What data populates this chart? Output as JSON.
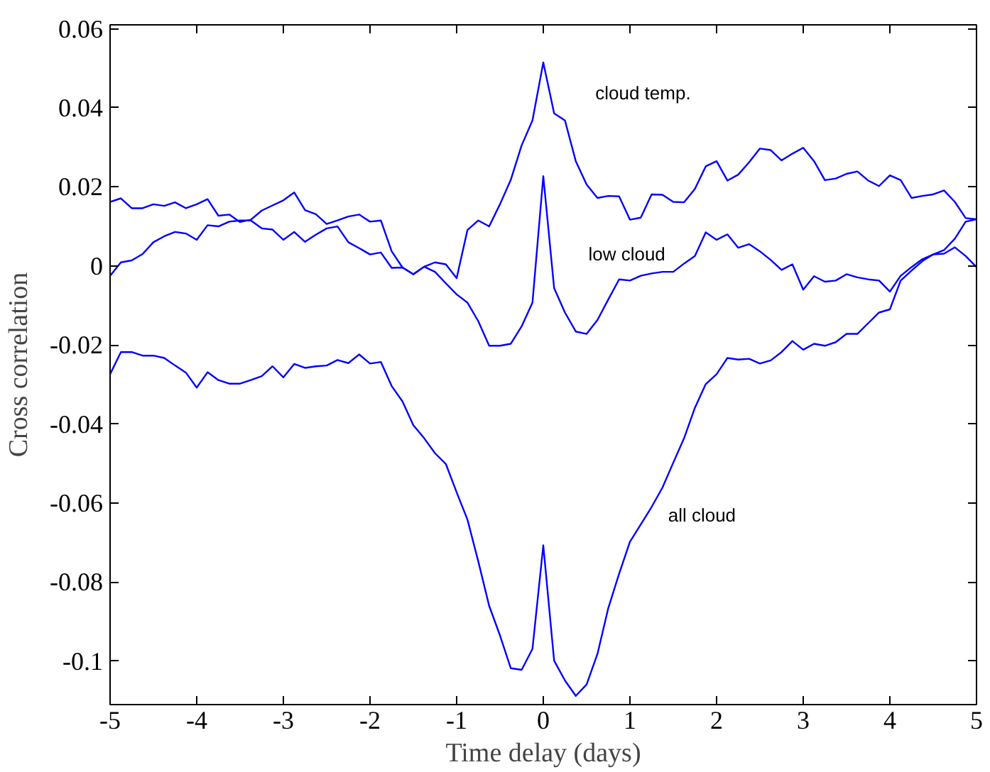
{
  "chart_data": {
    "type": "line",
    "xlabel": "Time delay (days)",
    "ylabel": "Cross correlation",
    "x": [
      -5,
      -4.875,
      -4.75,
      -4.625,
      -4.5,
      -4.375,
      -4.25,
      -4.125,
      -4,
      -3.875,
      -3.75,
      -3.625,
      -3.5,
      -3.375,
      -3.25,
      -3.125,
      -3,
      -2.875,
      -2.75,
      -2.625,
      -2.5,
      -2.375,
      -2.25,
      -2.125,
      -2,
      -1.875,
      -1.75,
      -1.625,
      -1.5,
      -1.375,
      -1.25,
      -1.125,
      -1,
      -0.875,
      -0.75,
      -0.625,
      -0.5,
      -0.375,
      -0.25,
      -0.125,
      0,
      0.125,
      0.25,
      0.375,
      0.5,
      0.625,
      0.75,
      0.875,
      1,
      1.125,
      1.25,
      1.375,
      1.5,
      1.625,
      1.75,
      1.875,
      2,
      2.125,
      2.25,
      2.375,
      2.5,
      2.625,
      2.75,
      2.875,
      3,
      3.125,
      3.25,
      3.375,
      3.5,
      3.625,
      3.75,
      3.875,
      4,
      4.125,
      4.25,
      4.375,
      4.5,
      4.625,
      4.75,
      4.875,
      5
    ],
    "series": [
      {
        "name": "cloud temp.",
        "color": "#0000ff",
        "values": [
          0.0162,
          0.0171,
          0.0146,
          0.0146,
          0.0156,
          0.0152,
          0.0161,
          0.0146,
          0.0156,
          0.0169,
          0.0127,
          0.013,
          0.0111,
          0.0117,
          0.014,
          0.0153,
          0.0166,
          0.0186,
          0.0141,
          0.0131,
          0.0106,
          0.0115,
          0.0125,
          0.013,
          0.0112,
          0.0115,
          0.0037,
          -0.0004,
          -0.0021,
          -0.0002,
          0.0009,
          0.0004,
          -0.0031,
          0.0091,
          0.0115,
          0.01,
          0.0156,
          0.0218,
          0.0305,
          0.0368,
          0.0515,
          0.0386,
          0.0368,
          0.0265,
          0.0206,
          0.0172,
          0.0177,
          0.0176,
          0.0117,
          0.0122,
          0.0181,
          0.018,
          0.0162,
          0.0161,
          0.0195,
          0.0252,
          0.0265,
          0.0216,
          0.0231,
          0.0262,
          0.0297,
          0.0293,
          0.0267,
          0.0284,
          0.0299,
          0.0265,
          0.0217,
          0.0221,
          0.0233,
          0.0239,
          0.0216,
          0.0202,
          0.0229,
          0.0217,
          0.0172,
          0.0177,
          0.0181,
          0.0191,
          0.0162,
          0.0121,
          0.0118
        ]
      },
      {
        "name": "low cloud",
        "color": "#0000ff",
        "values": [
          -0.0025,
          0.0009,
          0.0014,
          0.003,
          0.006,
          0.0075,
          0.0086,
          0.0082,
          0.0066,
          0.0103,
          0.01,
          0.0112,
          0.0115,
          0.0115,
          0.0095,
          0.0092,
          0.0066,
          0.0086,
          0.0061,
          0.0079,
          0.0095,
          0.01,
          0.006,
          0.0045,
          0.0029,
          0.0034,
          -0.0005,
          -0.0004,
          -0.0021,
          -0.0002,
          -0.0015,
          -0.0044,
          -0.0072,
          -0.0093,
          -0.014,
          -0.0202,
          -0.0202,
          -0.0197,
          -0.0153,
          -0.0093,
          0.0227,
          -0.0056,
          -0.0118,
          -0.0166,
          -0.0172,
          -0.0137,
          -0.0085,
          -0.0034,
          -0.0037,
          -0.0025,
          -0.0019,
          -0.0015,
          -0.0015,
          0.0006,
          0.0025,
          0.0085,
          0.0066,
          0.008,
          0.0046,
          0.0055,
          0.0037,
          0.0015,
          -0.001,
          0.0004,
          -0.006,
          -0.0026,
          -0.004,
          -0.0037,
          -0.0021,
          -0.0029,
          -0.0034,
          -0.0037,
          -0.0065,
          -0.0025,
          -0.0003,
          0.0017,
          0.0029,
          0.0031,
          0.0047,
          0.0025,
          -0.0003
        ]
      },
      {
        "name": "all cloud",
        "color": "#0000ff",
        "values": [
          -0.0274,
          -0.0218,
          -0.0218,
          -0.0227,
          -0.0227,
          -0.0233,
          -0.0252,
          -0.027,
          -0.0308,
          -0.0269,
          -0.0289,
          -0.0298,
          -0.0298,
          -0.0289,
          -0.0279,
          -0.0254,
          -0.0282,
          -0.0248,
          -0.0258,
          -0.0254,
          -0.0252,
          -0.0238,
          -0.0246,
          -0.0224,
          -0.0247,
          -0.0243,
          -0.0304,
          -0.0343,
          -0.0403,
          -0.0436,
          -0.0474,
          -0.0501,
          -0.0573,
          -0.0642,
          -0.0748,
          -0.086,
          -0.0935,
          -0.1018,
          -0.1022,
          -0.0969,
          -0.0707,
          -0.0999,
          -0.1049,
          -0.1088,
          -0.1059,
          -0.0982,
          -0.0866,
          -0.0779,
          -0.0698,
          -0.0654,
          -0.061,
          -0.0561,
          -0.0498,
          -0.0436,
          -0.0359,
          -0.0299,
          -0.0274,
          -0.0233,
          -0.0237,
          -0.0235,
          -0.0247,
          -0.0239,
          -0.0218,
          -0.019,
          -0.0212,
          -0.0197,
          -0.0202,
          -0.0193,
          -0.0172,
          -0.0172,
          -0.0145,
          -0.0118,
          -0.011,
          -0.0037,
          -0.0012,
          0.0012,
          0.0029,
          0.004,
          0.0069,
          0.0112,
          0.0118
        ]
      }
    ],
    "xlim": [
      -5,
      5
    ],
    "ylim": [
      -0.111,
      0.061
    ],
    "xticks": [
      -5,
      -4,
      -3,
      -2,
      -1,
      0,
      1,
      2,
      3,
      4,
      5
    ],
    "yticks": [
      -0.1,
      -0.08,
      -0.06,
      -0.04,
      -0.02,
      0,
      0.02,
      0.04,
      0.06
    ],
    "grid": false,
    "marker": "none",
    "line_style": "solid"
  }
}
